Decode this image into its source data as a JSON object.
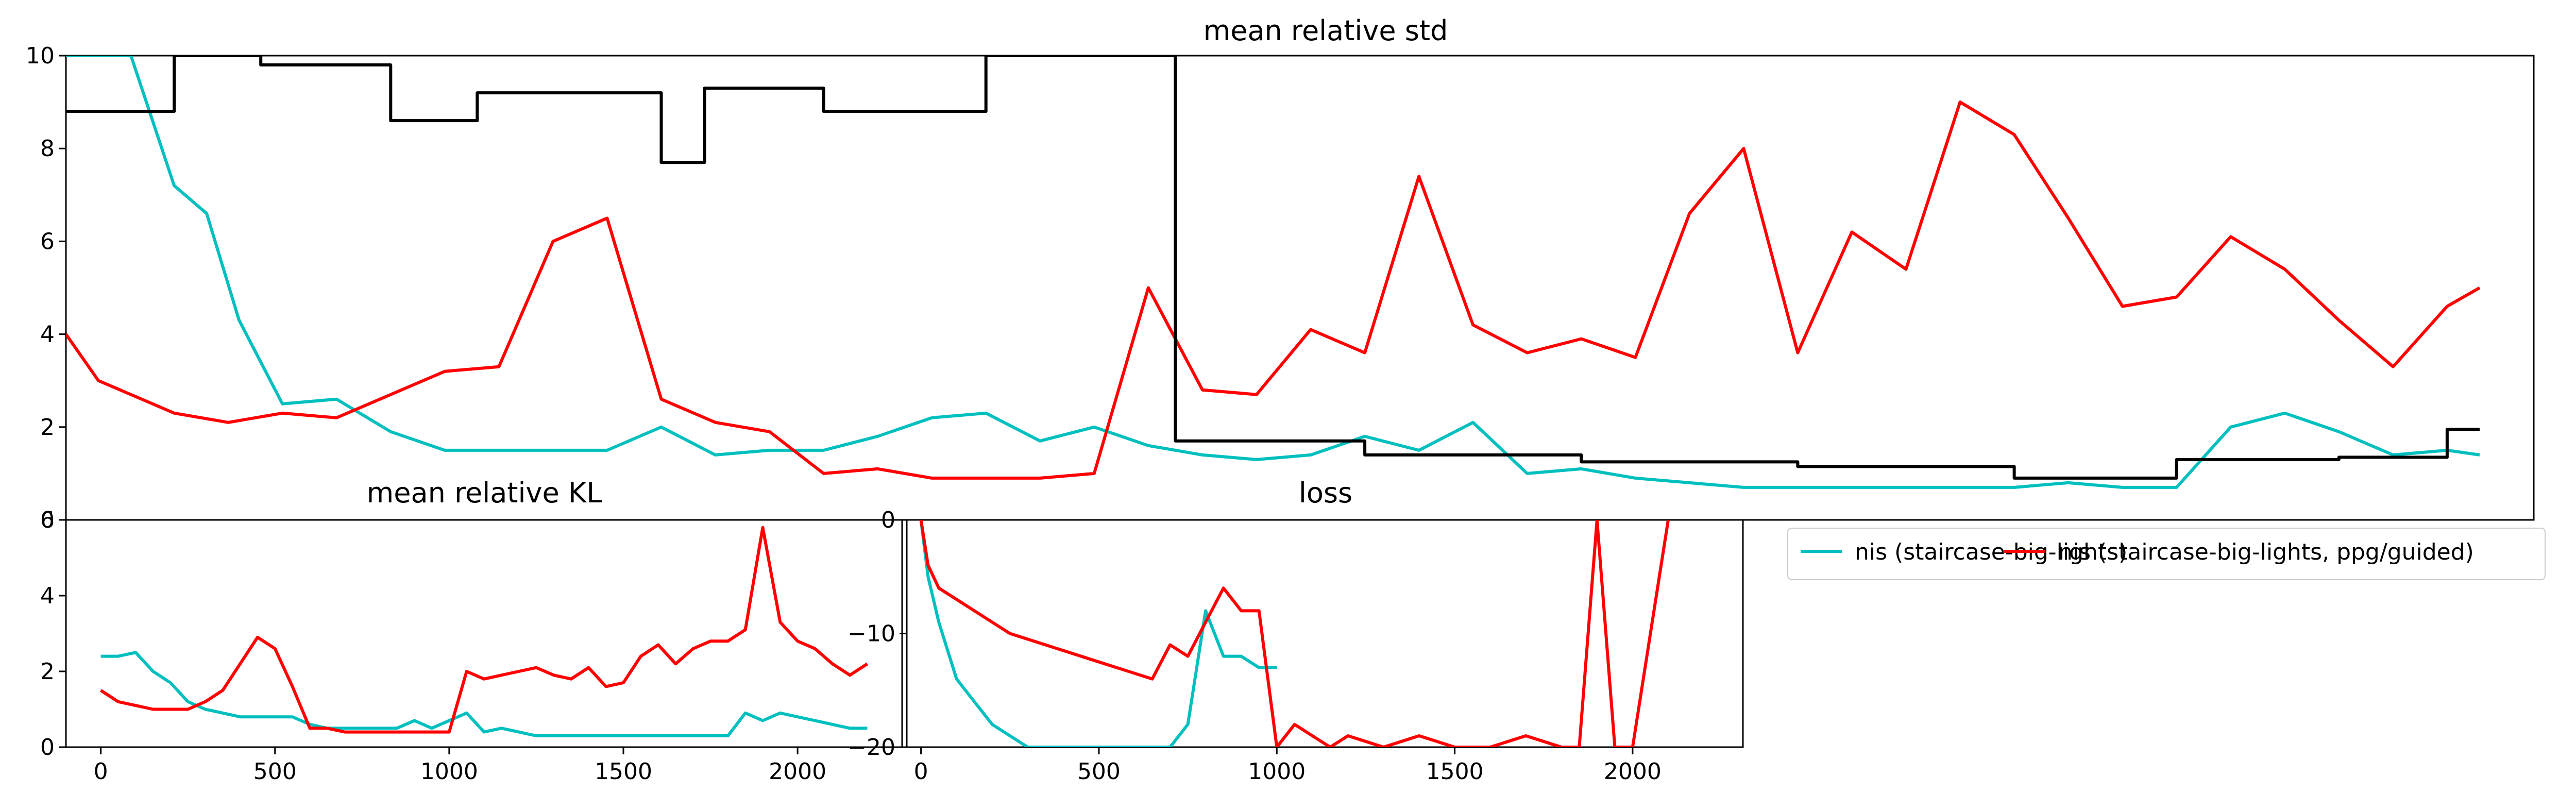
{
  "chart_data": [
    {
      "type": "line",
      "title": "mean relative std",
      "xlabel": "",
      "ylabel": "",
      "xlim": [
        0,
        2280
      ],
      "ylim": [
        0,
        10
      ],
      "y_ticks": [
        "0",
        "2",
        "4",
        "6",
        "8",
        "10"
      ],
      "x_ticks": [],
      "series": [
        {
          "color": "#00bfbf",
          "x": [
            0,
            60,
            100,
            130,
            160,
            200,
            250,
            300,
            350,
            400,
            450,
            500,
            550,
            600,
            650,
            700,
            750,
            800,
            850,
            900,
            950,
            1000,
            1050,
            1100,
            1150,
            1200,
            1250,
            1300,
            1350,
            1400,
            1450,
            1500,
            1550,
            1600,
            1650,
            1700,
            1750,
            1800,
            1850,
            1900,
            1950,
            2000,
            2050,
            2100,
            2150,
            2200,
            2230
          ],
          "y": [
            10,
            10,
            7.2,
            6.6,
            4.3,
            2.5,
            2.6,
            1.9,
            1.5,
            1.5,
            1.5,
            1.5,
            2.0,
            1.4,
            1.5,
            1.5,
            1.8,
            2.2,
            2.3,
            1.7,
            2.0,
            1.6,
            1.4,
            1.3,
            1.4,
            1.8,
            1.5,
            2.1,
            1.0,
            1.1,
            0.9,
            0.8,
            0.7,
            0.7,
            0.7,
            0.7,
            0.7,
            0.7,
            0.8,
            0.7,
            0.7,
            2.0,
            2.3,
            1.9,
            1.4,
            1.5,
            1.4
          ]
        },
        {
          "color": "#ff0000",
          "x": [
            0,
            30,
            60,
            100,
            150,
            200,
            250,
            300,
            350,
            400,
            450,
            500,
            550,
            600,
            650,
            700,
            750,
            800,
            850,
            900,
            950,
            1000,
            1050,
            1100,
            1150,
            1200,
            1250,
            1300,
            1350,
            1400,
            1450,
            1500,
            1550,
            1600,
            1650,
            1700,
            1750,
            1800,
            1850,
            1900,
            1950,
            2000,
            2050,
            2100,
            2150,
            2200,
            2230
          ],
          "y": [
            4.0,
            3.0,
            2.7,
            2.3,
            2.1,
            2.3,
            2.2,
            2.7,
            3.2,
            3.3,
            6.0,
            6.5,
            2.6,
            2.1,
            1.9,
            1.0,
            1.1,
            0.9,
            0.9,
            0.9,
            1.0,
            5.0,
            2.8,
            2.7,
            4.1,
            3.6,
            7.4,
            4.2,
            3.6,
            3.9,
            3.5,
            6.6,
            8.0,
            3.6,
            6.2,
            5.4,
            9.0,
            8.3,
            6.5,
            4.6,
            4.8,
            6.1,
            5.4,
            4.3,
            3.3,
            4.6,
            5.0
          ]
        },
        {
          "color": "#000000",
          "step": true,
          "x": [
            0,
            100,
            180,
            300,
            380,
            550,
            590,
            700,
            850,
            880,
            1000,
            1025,
            1175,
            1200,
            1300,
            1400,
            1450,
            1600,
            1650,
            1700,
            1750,
            1800,
            1850,
            1950,
            2000,
            2100,
            2150,
            2200,
            2230
          ],
          "y": [
            8.8,
            10,
            9.8,
            8.6,
            9.2,
            7.7,
            9.3,
            8.8,
            10,
            10,
            10,
            1.7,
            1.7,
            1.4,
            1.4,
            1.25,
            1.25,
            1.15,
            1.15,
            1.15,
            1.15,
            0.9,
            0.9,
            1.3,
            1.3,
            1.35,
            1.35,
            1.95,
            1.95
          ]
        }
      ]
    },
    {
      "type": "line",
      "title": "mean relative KL",
      "xlabel": "",
      "ylabel": "",
      "xlim": [
        -100,
        2300
      ],
      "ylim": [
        0,
        6
      ],
      "x_ticks": [
        "0",
        "500",
        "1000",
        "1500",
        "2000"
      ],
      "y_ticks": [
        "0",
        "2",
        "4",
        "6"
      ],
      "series": [
        {
          "color": "#00bfbf",
          "x": [
            0,
            50,
            100,
            150,
            200,
            250,
            300,
            350,
            400,
            450,
            500,
            550,
            600,
            650,
            700,
            750,
            800,
            850,
            900,
            950,
            1000,
            1050,
            1100,
            1150,
            1200,
            1250,
            1300,
            1350,
            1400,
            1450,
            1500,
            1550,
            1600,
            1650,
            1700,
            1750,
            1800,
            1850,
            1900,
            1950,
            2000,
            2050,
            2100,
            2150,
            2200
          ],
          "y": [
            2.4,
            2.4,
            2.5,
            2.0,
            1.7,
            1.2,
            1.0,
            0.9,
            0.8,
            0.8,
            0.8,
            0.8,
            0.6,
            0.5,
            0.5,
            0.5,
            0.5,
            0.5,
            0.7,
            0.5,
            0.7,
            0.9,
            0.4,
            0.5,
            0.4,
            0.3,
            0.3,
            0.3,
            0.3,
            0.3,
            0.3,
            0.3,
            0.3,
            0.3,
            0.3,
            0.3,
            0.3,
            0.9,
            0.7,
            0.9,
            0.8,
            0.7,
            0.6,
            0.5,
            0.5
          ]
        },
        {
          "color": "#ff0000",
          "x": [
            0,
            50,
            100,
            150,
            200,
            250,
            300,
            350,
            400,
            450,
            500,
            550,
            600,
            650,
            700,
            750,
            800,
            850,
            900,
            950,
            1000,
            1050,
            1100,
            1150,
            1200,
            1250,
            1300,
            1350,
            1400,
            1450,
            1500,
            1550,
            1600,
            1650,
            1700,
            1750,
            1800,
            1850,
            1900,
            1950,
            2000,
            2050,
            2100,
            2150,
            2200
          ],
          "y": [
            1.5,
            1.2,
            1.1,
            1.0,
            1.0,
            1.0,
            1.2,
            1.5,
            2.2,
            2.9,
            2.6,
            1.6,
            0.5,
            0.5,
            0.4,
            0.4,
            0.4,
            0.4,
            0.4,
            0.4,
            0.4,
            2.0,
            1.8,
            1.9,
            2.0,
            2.1,
            1.9,
            1.8,
            2.1,
            1.6,
            1.7,
            2.4,
            2.7,
            2.2,
            2.6,
            2.8,
            2.8,
            3.1,
            5.8,
            3.3,
            2.8,
            2.6,
            2.2,
            1.9,
            2.2
          ]
        }
      ]
    },
    {
      "type": "line",
      "title": "loss",
      "xlabel": "",
      "ylabel": "",
      "xlim": [
        -40,
        2310
      ],
      "ylim": [
        -20,
        0
      ],
      "x_ticks": [
        "0",
        "500",
        "1000",
        "1500",
        "2000"
      ],
      "y_ticks": [
        "0",
        "−10",
        "−20"
      ],
      "series": [
        {
          "color": "#00bfbf",
          "x": [
            0,
            20,
            50,
            100,
            150,
            200,
            250,
            300,
            350,
            400,
            450,
            500,
            550,
            600,
            650,
            700,
            750,
            800,
            850,
            900,
            950,
            1000
          ],
          "y": [
            0,
            -5,
            -9,
            -14,
            -16,
            -18,
            -19,
            -20,
            -20,
            -20,
            -20,
            -20,
            -20,
            -20,
            -20,
            -20,
            -18,
            -8,
            -12,
            -12,
            -13,
            -13
          ]
        },
        {
          "color": "#ff0000",
          "x": [
            0,
            20,
            50,
            100,
            150,
            200,
            250,
            300,
            350,
            400,
            450,
            500,
            550,
            600,
            650,
            700,
            750,
            800,
            850,
            900,
            950,
            1000,
            1050,
            1100,
            1150,
            1200,
            1300,
            1400,
            1500,
            1600,
            1700,
            1800,
            1850,
            1900,
            1950,
            2000,
            2100
          ],
          "y": [
            0,
            -4,
            -6,
            -7,
            -8,
            -9,
            -10,
            -10.5,
            -11,
            -11.5,
            -12,
            -12.5,
            -13,
            -13.5,
            -14,
            -11,
            -12,
            -9,
            -6,
            -8,
            -8,
            -20,
            -18,
            -19,
            -20,
            -19,
            -20,
            -19,
            -20,
            -20,
            -19,
            -20,
            -20,
            0,
            -20,
            -20,
            0
          ]
        }
      ]
    }
  ],
  "legend": {
    "entries": [
      {
        "label": "nis (staircase-big-lights)",
        "color": "#00bfbf"
      },
      {
        "label": "nis (staircase-big-lights, ppg/guided)",
        "color": "#ff0000"
      }
    ]
  }
}
